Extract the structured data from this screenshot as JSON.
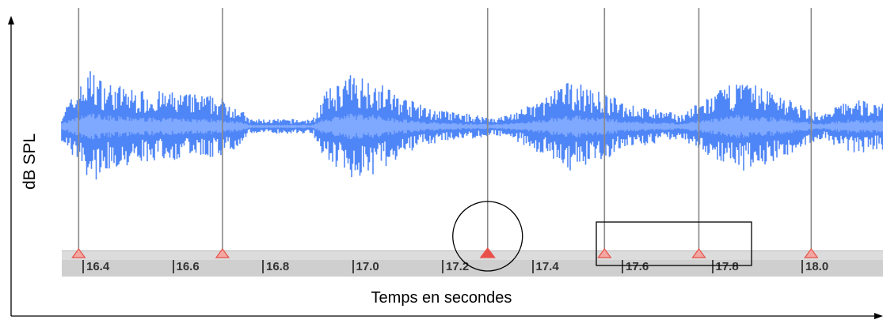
{
  "axes": {
    "y_label": "dB SPL",
    "x_label": "Temps en secondes"
  },
  "ruler": {
    "ticks": [
      "16.4",
      "16.6",
      "16.8",
      "17.0",
      "17.2",
      "17.4",
      "17.6",
      "17.8",
      "18.0"
    ]
  },
  "markers": {
    "times": [
      16.39,
      16.71,
      17.3,
      17.56,
      17.77,
      18.02
    ],
    "highlighted": [
      17.3
    ],
    "marker_color": "#e8514a"
  },
  "waveform": {
    "color": "#4f86f7",
    "inner_color": "#7fa8ff"
  },
  "annotations": {
    "circle_around_time": 17.3,
    "rectangle_around_times": [
      17.56,
      17.77
    ]
  }
}
